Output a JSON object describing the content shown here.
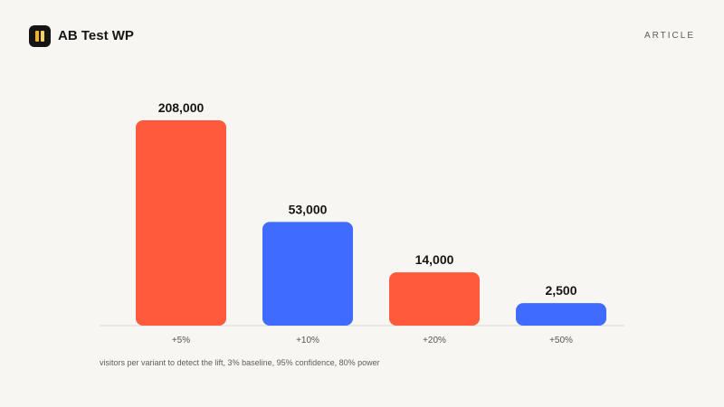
{
  "header": {
    "brand": "AB Test WP",
    "nav_link": "ARTICLE"
  },
  "chart_data": {
    "type": "bar",
    "categories": [
      "+5%",
      "+10%",
      "+20%",
      "+50%"
    ],
    "values": [
      208000,
      53000,
      14000,
      2500
    ],
    "value_labels": [
      "208,000",
      "53,000",
      "14,000",
      "2,500"
    ],
    "bar_colors": [
      "#ff5a3c",
      "#3f6cff",
      "#ff5a3c",
      "#3f6cff"
    ],
    "title": "",
    "xlabel": "",
    "ylabel": "",
    "y_scale": "sqrt",
    "grid": false,
    "legend": "none"
  },
  "caption": "visitors per variant to detect the lift, 3% baseline, 95% confidence, 80% power",
  "colors": {
    "background": "#f8f6f2",
    "accent_red": "#ff5a3c",
    "accent_blue": "#3f6cff",
    "logo": "#141414"
  }
}
